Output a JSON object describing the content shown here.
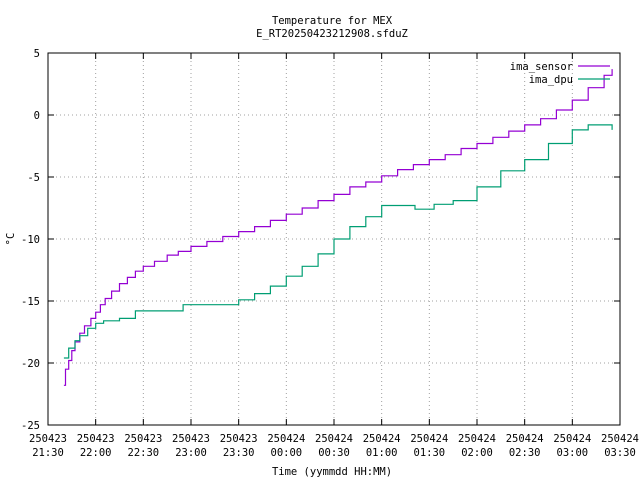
{
  "chart_data": {
    "type": "line",
    "title": "Temperature for MEX",
    "subtitle": "E_RT20250423212908.sfduZ",
    "xlabel": "Time (yymmdd HH:MM)",
    "ylabel": "°C",
    "ylim": [
      -25,
      5
    ],
    "yticks": [
      -25,
      -20,
      -15,
      -10,
      -5,
      0,
      5
    ],
    "xlim": [
      "250423 21:30",
      "250424 03:30"
    ],
    "xticks": [
      {
        "date": "250423",
        "time": "21:30"
      },
      {
        "date": "250423",
        "time": "22:00"
      },
      {
        "date": "250423",
        "time": "22:30"
      },
      {
        "date": "250423",
        "time": "23:00"
      },
      {
        "date": "250423",
        "time": "23:30"
      },
      {
        "date": "250424",
        "time": "00:00"
      },
      {
        "date": "250424",
        "time": "00:30"
      },
      {
        "date": "250424",
        "time": "01:00"
      },
      {
        "date": "250424",
        "time": "01:30"
      },
      {
        "date": "250424",
        "time": "02:00"
      },
      {
        "date": "250424",
        "time": "02:30"
      },
      {
        "date": "250424",
        "time": "03:00"
      },
      {
        "date": "250424",
        "time": "03:30"
      }
    ],
    "grid": true,
    "legend_position": "top-right",
    "series": [
      {
        "name": "ima_sensor",
        "color": "#9400d3",
        "points": [
          [
            "250423 21:40",
            -21.8
          ],
          [
            "250423 21:41",
            -20.5
          ],
          [
            "250423 21:43",
            -19.8
          ],
          [
            "250423 21:45",
            -19.0
          ],
          [
            "250423 21:47",
            -18.3
          ],
          [
            "250423 21:50",
            -17.6
          ],
          [
            "250423 21:53",
            -17.0
          ],
          [
            "250423 21:57",
            -16.4
          ],
          [
            "250423 22:00",
            -15.9
          ],
          [
            "250423 22:03",
            -15.3
          ],
          [
            "250423 22:06",
            -14.8
          ],
          [
            "250423 22:10",
            -14.2
          ],
          [
            "250423 22:15",
            -13.6
          ],
          [
            "250423 22:20",
            -13.1
          ],
          [
            "250423 22:25",
            -12.6
          ],
          [
            "250423 22:30",
            -12.2
          ],
          [
            "250423 22:37",
            -11.8
          ],
          [
            "250423 22:45",
            -11.3
          ],
          [
            "250423 22:52",
            -11.0
          ],
          [
            "250423 23:00",
            -10.6
          ],
          [
            "250423 23:10",
            -10.2
          ],
          [
            "250423 23:20",
            -9.8
          ],
          [
            "250423 23:30",
            -9.4
          ],
          [
            "250423 23:40",
            -9.0
          ],
          [
            "250423 23:50",
            -8.5
          ],
          [
            "250424 00:00",
            -8.0
          ],
          [
            "250424 00:10",
            -7.5
          ],
          [
            "250424 00:20",
            -6.9
          ],
          [
            "250424 00:30",
            -6.4
          ],
          [
            "250424 00:40",
            -5.8
          ],
          [
            "250424 00:50",
            -5.4
          ],
          [
            "250424 01:00",
            -4.9
          ],
          [
            "250424 01:10",
            -4.4
          ],
          [
            "250424 01:20",
            -4.0
          ],
          [
            "250424 01:30",
            -3.6
          ],
          [
            "250424 01:40",
            -3.2
          ],
          [
            "250424 01:50",
            -2.7
          ],
          [
            "250424 02:00",
            -2.3
          ],
          [
            "250424 02:10",
            -1.8
          ],
          [
            "250424 02:20",
            -1.3
          ],
          [
            "250424 02:30",
            -0.8
          ],
          [
            "250424 02:40",
            -0.3
          ],
          [
            "250424 02:50",
            0.4
          ],
          [
            "250424 03:00",
            1.2
          ],
          [
            "250424 03:10",
            2.2
          ],
          [
            "250424 03:20",
            3.2
          ],
          [
            "250424 03:25",
            3.7
          ]
        ]
      },
      {
        "name": "ima_dpu",
        "color": "#009e73",
        "points": [
          [
            "250423 21:40",
            -19.6
          ],
          [
            "250423 21:43",
            -18.8
          ],
          [
            "250423 21:47",
            -18.2
          ],
          [
            "250423 21:50",
            -17.8
          ],
          [
            "250423 21:55",
            -17.2
          ],
          [
            "250423 22:00",
            -16.8
          ],
          [
            "250423 22:05",
            -16.6
          ],
          [
            "250423 22:15",
            -16.4
          ],
          [
            "250423 22:25",
            -15.8
          ],
          [
            "250423 22:45",
            -15.8
          ],
          [
            "250423 22:55",
            -15.3
          ],
          [
            "250423 23:20",
            -15.3
          ],
          [
            "250423 23:30",
            -14.9
          ],
          [
            "250423 23:40",
            -14.4
          ],
          [
            "250423 23:50",
            -13.8
          ],
          [
            "250424 00:00",
            -13.0
          ],
          [
            "250424 00:10",
            -12.2
          ],
          [
            "250424 00:20",
            -11.2
          ],
          [
            "250424 00:30",
            -10.0
          ],
          [
            "250424 00:40",
            -9.0
          ],
          [
            "250424 00:50",
            -8.2
          ],
          [
            "250424 01:00",
            -7.3
          ],
          [
            "250424 01:20",
            -7.3
          ],
          [
            "250424 01:21",
            -7.6
          ],
          [
            "250424 01:32",
            -7.6
          ],
          [
            "250424 01:33",
            -7.2
          ],
          [
            "250424 01:45",
            -6.9
          ],
          [
            "250424 02:00",
            -5.8
          ],
          [
            "250424 02:15",
            -4.5
          ],
          [
            "250424 02:30",
            -3.6
          ],
          [
            "250424 02:45",
            -2.3
          ],
          [
            "250424 03:00",
            -1.2
          ],
          [
            "250424 03:10",
            -0.8
          ],
          [
            "250424 03:20",
            -0.8
          ],
          [
            "250424 03:25",
            -1.2
          ]
        ]
      }
    ]
  }
}
